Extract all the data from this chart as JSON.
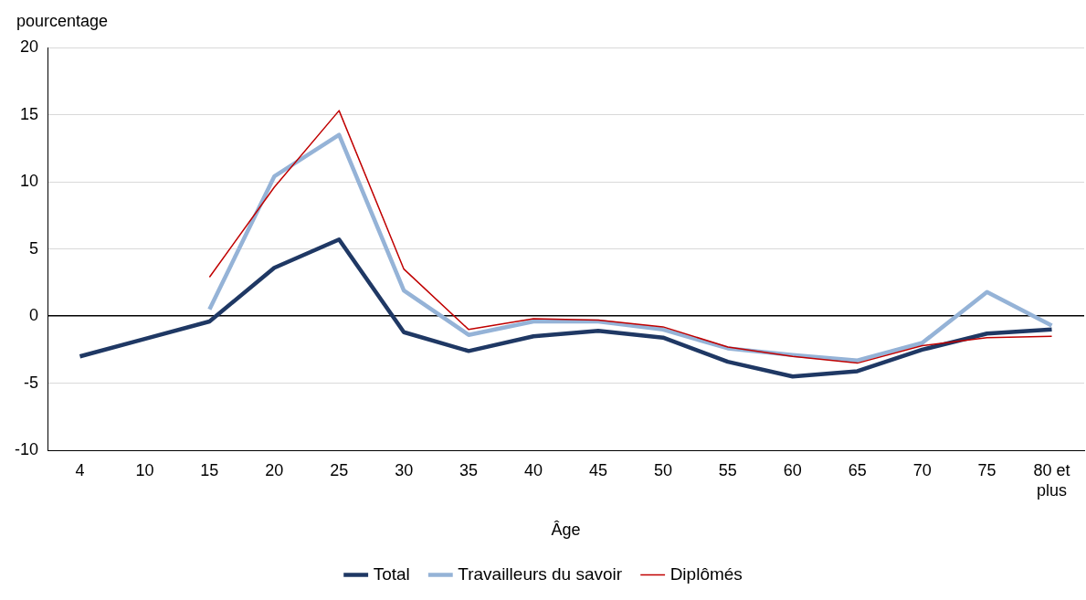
{
  "chart_data": {
    "type": "line",
    "xlabel": "Âge",
    "ylabel": "pourcentage",
    "categories": [
      "4",
      "10",
      "15",
      "20",
      "25",
      "30",
      "35",
      "40",
      "45",
      "50",
      "55",
      "60",
      "65",
      "70",
      "75",
      "80 et plus"
    ],
    "series": [
      {
        "name": "Total",
        "color": "#1f3864",
        "values": [
          -3.0,
          -1.7,
          -0.4,
          3.6,
          5.7,
          -1.2,
          -2.6,
          -1.5,
          -1.1,
          -1.6,
          -3.4,
          -4.5,
          -4.1,
          -2.5,
          -1.3,
          -1.0
        ]
      },
      {
        "name": "Travailleurs du savoir",
        "color": "#95b3d7",
        "values": [
          null,
          null,
          0.5,
          10.4,
          13.5,
          1.9,
          -1.4,
          -0.4,
          -0.4,
          -1.0,
          -2.4,
          -2.9,
          -3.3,
          -2.0,
          1.8,
          -0.7
        ]
      },
      {
        "name": "Diplômés",
        "color": "#c00000",
        "values": [
          null,
          null,
          2.9,
          9.6,
          15.3,
          3.5,
          -1.0,
          -0.2,
          -0.3,
          -0.8,
          -2.3,
          -3.0,
          -3.5,
          -2.2,
          -1.6,
          -1.5
        ]
      }
    ],
    "ylim": [
      -10,
      20
    ],
    "yticks": [
      -10,
      -5,
      0,
      5,
      10,
      15,
      20
    ],
    "grid": "y",
    "legend": "bottom",
    "marker": "none",
    "line_style": "solid"
  }
}
